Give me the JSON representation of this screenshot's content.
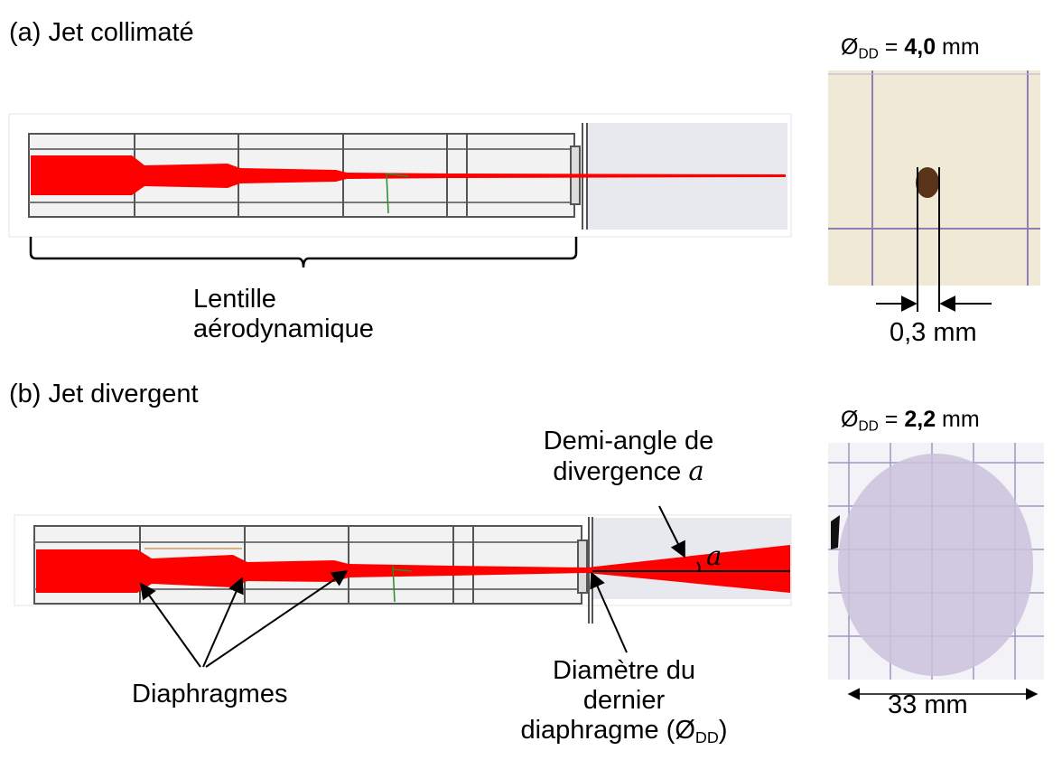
{
  "panel_a": {
    "title": "(a) Jet collimaté",
    "lens_label_line1": "Lentille",
    "lens_label_line2": "aérodynamique",
    "photo": {
      "dd_symbol": "Ø",
      "dd_subscript": "DD",
      "dd_equals": " = ",
      "dd_value": "4,0",
      "dd_unit": " mm",
      "spot_width": "0,3 mm"
    }
  },
  "panel_b": {
    "title": "(b) Jet divergent",
    "angle_label_line1": "Demi-angle de",
    "angle_label_line2": "divergence ",
    "angle_symbol": "a",
    "diaphragms_label": "Diaphragmes",
    "last_diaphragm_line1": "Diamètre du",
    "last_diaphragm_line2": "dernier",
    "last_diaphragm_line3": "diaphragme (",
    "last_diaphragm_symbol": "Ø",
    "last_diaphragm_subscript": "DD",
    "last_diaphragm_close": ")",
    "photo": {
      "dd_symbol": "Ø",
      "dd_subscript": "DD",
      "dd_equals": " = ",
      "dd_value": "2,2",
      "dd_unit": " mm",
      "deposit_width": "33 mm"
    }
  },
  "colors": {
    "jet": "#ff0000",
    "tube_outline": "#555555",
    "tube_fill": "#f2f2f2",
    "photo_a_bg": "#efe9d6",
    "grid_line": "#8b7fb6",
    "deposit": "#c9c2da",
    "spot": "#5a3418"
  }
}
